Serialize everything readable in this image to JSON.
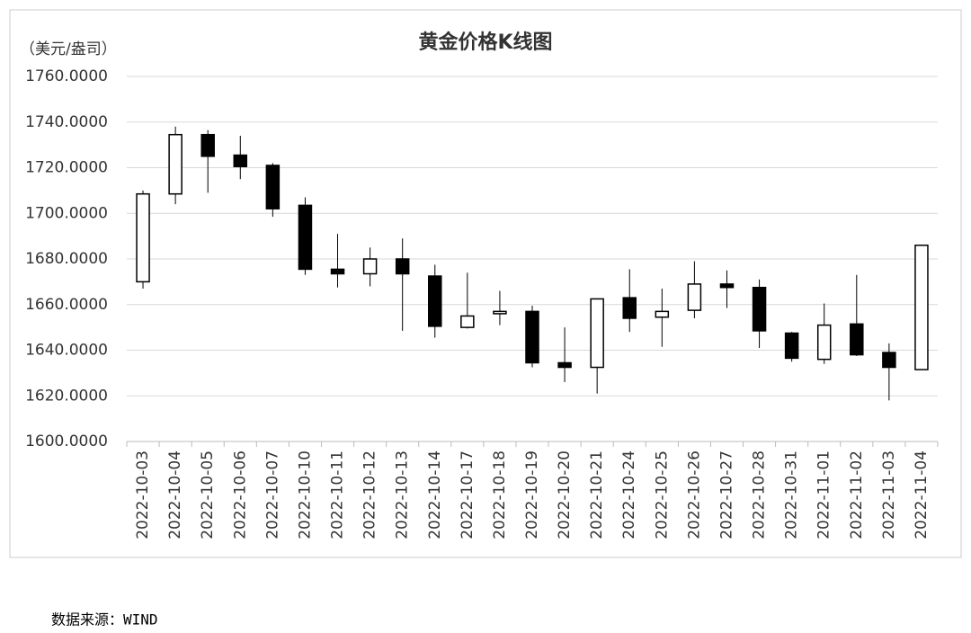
{
  "chart_data": {
    "type": "candlestick",
    "title": "黄金价格K线图",
    "y_label": "（美元/盎司）",
    "source": "数据来源：WIND",
    "categories": [
      "2022-10-03",
      "2022-10-04",
      "2022-10-05",
      "2022-10-06",
      "2022-10-07",
      "2022-10-10",
      "2022-10-11",
      "2022-10-12",
      "2022-10-13",
      "2022-10-14",
      "2022-10-17",
      "2022-10-18",
      "2022-10-19",
      "2022-10-20",
      "2022-10-21",
      "2022-10-24",
      "2022-10-25",
      "2022-10-26",
      "2022-10-27",
      "2022-10-28",
      "2022-10-31",
      "2022-11-01",
      "2022-11-02",
      "2022-11-03",
      "2022-11-04"
    ],
    "open": [
      1670,
      1708.5,
      1734.5,
      1725.5,
      1721,
      1703.5,
      1675.5,
      1673.5,
      1680,
      1672.5,
      1650,
      1656,
      1657,
      1634.5,
      1632.5,
      1663,
      1654.5,
      1657.5,
      1669,
      1667.5,
      1647.5,
      1636,
      1651.5,
      1639,
      1631.5
    ],
    "high": [
      1710,
      1738,
      1736.5,
      1734,
      1722,
      1707,
      1691,
      1685,
      1689,
      1677.5,
      1674,
      1666,
      1659.5,
      1650,
      1662.5,
      1675.5,
      1667,
      1679,
      1675,
      1671,
      1648,
      1660.5,
      1673,
      1643,
      1686
    ],
    "low": [
      1667,
      1704,
      1709,
      1715,
      1698.5,
      1673,
      1667.5,
      1668,
      1648.5,
      1645.5,
      1649.5,
      1651,
      1632.5,
      1626,
      1621,
      1648,
      1641.5,
      1654,
      1658.5,
      1641,
      1635,
      1634,
      1637.5,
      1618,
      1631.5
    ],
    "close": [
      1708.5,
      1734.5,
      1725,
      1720.5,
      1702,
      1675.5,
      1673.5,
      1680,
      1673.5,
      1650.5,
      1655,
      1657,
      1634.5,
      1632.5,
      1662.5,
      1654,
      1657,
      1669,
      1667.5,
      1648.5,
      1636.5,
      1651,
      1638,
      1632.5,
      1686
    ],
    "up_color": "#ffffff",
    "down_color": "#000000",
    "ylim": [
      1600,
      1760
    ],
    "yticks": [
      {
        "value": 1600,
        "label": "1600.0000"
      },
      {
        "value": 1620,
        "label": "1620.0000"
      },
      {
        "value": 1640,
        "label": "1640.0000"
      },
      {
        "value": 1660,
        "label": "1660.0000"
      },
      {
        "value": 1680,
        "label": "1680.0000"
      },
      {
        "value": 1700,
        "label": "1700.0000"
      },
      {
        "value": 1720,
        "label": "1720.0000"
      },
      {
        "value": 1740,
        "label": "1740.0000"
      },
      {
        "value": 1760,
        "label": "1760.0000"
      }
    ],
    "grid": true
  }
}
